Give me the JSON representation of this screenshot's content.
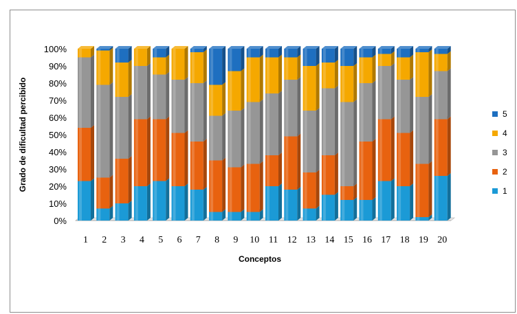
{
  "chart_data": {
    "type": "bar",
    "stacked": true,
    "normalized": true,
    "categories": [
      "1",
      "2",
      "3",
      "4",
      "5",
      "6",
      "7",
      "8",
      "9",
      "10",
      "11",
      "12",
      "13",
      "14",
      "15",
      "16",
      "17",
      "18",
      "19",
      "20"
    ],
    "series": [
      {
        "name": "1",
        "color": "#1b9ad6",
        "values": [
          23,
          7,
          10,
          20,
          23,
          20,
          18,
          5,
          5,
          5,
          20,
          18,
          7,
          15,
          12,
          12,
          23,
          20,
          2,
          26
        ]
      },
      {
        "name": "2",
        "color": "#e8620f",
        "values": [
          31,
          18,
          26,
          39,
          36,
          31,
          28,
          30,
          26,
          28,
          18,
          31,
          21,
          23,
          8,
          34,
          36,
          31,
          31,
          33
        ]
      },
      {
        "name": "3",
        "color": "#969696",
        "values": [
          41,
          54,
          36,
          31,
          26,
          31,
          34,
          26,
          33,
          36,
          36,
          33,
          36,
          39,
          49,
          34,
          31,
          31,
          39,
          28
        ]
      },
      {
        "name": "4",
        "color": "#f5a800",
        "values": [
          5,
          20,
          20,
          10,
          10,
          18,
          18,
          18,
          23,
          26,
          21,
          13,
          26,
          15,
          21,
          15,
          7,
          13,
          26,
          10
        ]
      },
      {
        "name": "5",
        "color": "#1e6fc0",
        "values": [
          0,
          1,
          8,
          0,
          5,
          0,
          2,
          21,
          13,
          5,
          5,
          5,
          10,
          8,
          10,
          5,
          3,
          5,
          2,
          3
        ]
      }
    ],
    "ylim": [
      0,
      100
    ],
    "yticks": [
      "0%",
      "10%",
      "20%",
      "30%",
      "40%",
      "50%",
      "60%",
      "70%",
      "80%",
      "90%",
      "100%"
    ],
    "xlabel": "Conceptos",
    "ylabel": "Grado de dificultad percibido",
    "legend": {
      "position": "right",
      "labels": [
        "5",
        "4",
        "3",
        "2",
        "1"
      ]
    },
    "grid": false,
    "style": "3d"
  }
}
